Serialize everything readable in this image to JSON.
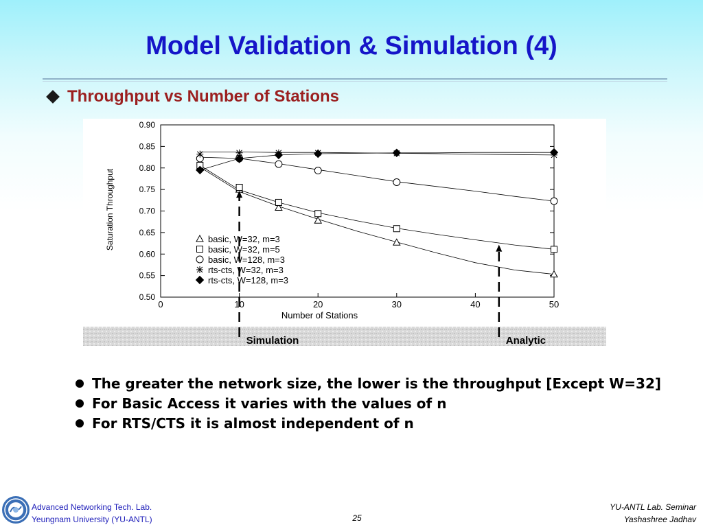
{
  "slide": {
    "title": "Model Validation & Simulation (4)",
    "subtitle": "Throughput vs Number of Stations",
    "bullets": [
      "The greater the network size, the lower is the throughput  [Except W=32]",
      "For Basic Access it varies with the values of n",
      "For RTS/CTS it is almost independent of n"
    ]
  },
  "footer": {
    "org_line1": "Advanced Networking Tech. Lab.",
    "org_line2": "Yeungnam University (YU-ANTL)",
    "page": "25",
    "right_line1": "YU-ANTL Lab. Seminar",
    "right_line2": "Yashashree Jadhav"
  },
  "chart_data": {
    "type": "line",
    "xlabel": "Number of Stations",
    "ylabel": "Saturation Throughput",
    "xlim": [
      0,
      50
    ],
    "ylim": [
      0.5,
      0.9
    ],
    "xticks": [
      "0",
      "10",
      "20",
      "30",
      "40",
      "50"
    ],
    "yticks": [
      "0.50",
      "0.55",
      "0.60",
      "0.65",
      "0.70",
      "0.75",
      "0.80",
      "0.85",
      "0.90"
    ],
    "legend_position": "bottom-left",
    "grid": false,
    "marker_x": [
      5,
      10,
      15,
      20,
      30,
      50
    ],
    "curve_x": [
      5,
      10,
      15,
      20,
      25,
      30,
      35,
      40,
      45,
      50
    ],
    "series": [
      {
        "name": "basic, W=32, m=3",
        "marker": "triangle",
        "values": [
          0.802,
          0.75,
          0.708,
          0.678,
          0.627,
          0.553
        ],
        "curve": [
          0.802,
          0.745,
          0.711,
          0.681,
          0.653,
          0.628,
          0.603,
          0.58,
          0.563,
          0.553
        ]
      },
      {
        "name": "basic, W=32, m=5",
        "marker": "square",
        "values": [
          0.806,
          0.755,
          0.72,
          0.694,
          0.659,
          0.611
        ],
        "curve": [
          0.806,
          0.749,
          0.72,
          0.696,
          0.677,
          0.66,
          0.646,
          0.633,
          0.621,
          0.611
        ]
      },
      {
        "name": "basic, W=128, m=3",
        "marker": "circle",
        "values": [
          0.822,
          0.822,
          0.809,
          0.794,
          0.767,
          0.723
        ],
        "curve": [
          0.825,
          0.822,
          0.81,
          0.796,
          0.782,
          0.768,
          0.757,
          0.746,
          0.734,
          0.723
        ]
      },
      {
        "name": "rts-cts, W=32, m=3",
        "marker": "star",
        "values": [
          0.832,
          0.835,
          0.835,
          0.835,
          0.834,
          0.83
        ],
        "curve": [
          0.837,
          0.837,
          0.836,
          0.836,
          0.835,
          0.834,
          0.833,
          0.832,
          0.831,
          0.83
        ]
      },
      {
        "name": "rts-cts, W=128, m=3",
        "marker": "diamond",
        "values": [
          0.795,
          0.821,
          0.83,
          0.833,
          0.835,
          0.836
        ],
        "curve": [
          0.795,
          0.822,
          0.83,
          0.833,
          0.834,
          0.835,
          0.835,
          0.836,
          0.836,
          0.836
        ]
      }
    ],
    "annotations": [
      {
        "label": "Simulation",
        "x": 10,
        "arrow_to_y": 0.75
      },
      {
        "label": "Analytic",
        "x": 43,
        "arrow_to_y": 0.625
      }
    ]
  }
}
